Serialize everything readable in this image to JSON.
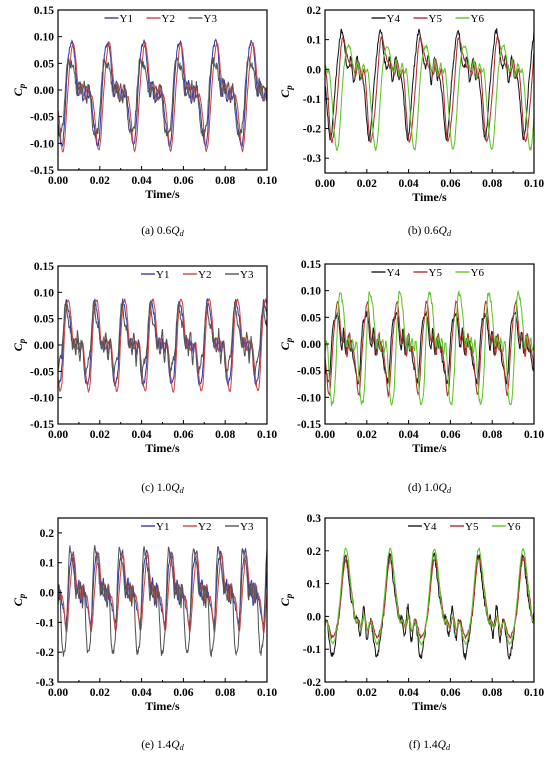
{
  "legend_colors": {
    "Y1": "#3a3aa8",
    "Y2": "#c84848",
    "Y3": "#555555",
    "Y4": "#1a1a1a",
    "Y5": "#b03030",
    "Y6": "#5fc52a"
  },
  "chart_data": [
    {
      "type": "line",
      "panel": "a",
      "caption_prefix": "(a) 0.6",
      "caption_q": "Q",
      "caption_sub": "d",
      "xlabel": "Time/s",
      "ylabel_main": "C",
      "ylabel_sub": "p",
      "xlim": [
        0,
        0.1
      ],
      "ylim": [
        -0.15,
        0.15
      ],
      "xticks": [
        "0.00",
        "0.02",
        "0.04",
        "0.06",
        "0.08",
        "0.10"
      ],
      "yticks": [
        "-0.15",
        "-0.10",
        "-0.05",
        "0.00",
        "0.05",
        "0.10",
        "0.15"
      ],
      "legend": "top-center",
      "series": [
        {
          "name": "Y1",
          "color": "#3a3aa8",
          "period": 0.0172,
          "phase": 0.0015,
          "mean": -0.005,
          "peak": 0.095,
          "trough": -0.105,
          "harm": 0.015,
          "noise": 0.005
        },
        {
          "name": "Y2",
          "color": "#c84848",
          "period": 0.0172,
          "phase": 0.0022,
          "mean": -0.005,
          "peak": 0.085,
          "trough": -0.11,
          "harm": 0.01,
          "noise": 0.003
        },
        {
          "name": "Y3",
          "color": "#555555",
          "period": 0.0172,
          "phase": 0.0008,
          "mean": 0.0,
          "peak": 0.06,
          "trough": -0.09,
          "harm": 0.02,
          "noise": 0.008
        }
      ]
    },
    {
      "type": "line",
      "panel": "b",
      "caption_prefix": "(b) 0.6",
      "caption_q": "Q",
      "caption_sub": "d",
      "xlabel": "Time/s",
      "ylabel_main": "C",
      "ylabel_sub": "p",
      "xlim": [
        0,
        0.1
      ],
      "ylim": [
        -0.35,
        0.2
      ],
      "xticks": [
        "0.00",
        "0.02",
        "0.04",
        "0.06",
        "0.08",
        "0.10"
      ],
      "yticks": [
        "-0.3",
        "-0.2",
        "-0.1",
        "0.0",
        "0.1",
        "0.2"
      ],
      "legend": "top-center",
      "series": [
        {
          "name": "Y4",
          "color": "#1a1a1a",
          "period": 0.0185,
          "phase": 0.0025,
          "mean": 0.0,
          "peak": 0.12,
          "trough": -0.22,
          "harm": 0.03,
          "noise": 0.01
        },
        {
          "name": "Y5",
          "color": "#b03030",
          "period": 0.0185,
          "phase": 0.0035,
          "mean": 0.0,
          "peak": 0.1,
          "trough": -0.24,
          "harm": 0.02,
          "noise": 0.005
        },
        {
          "name": "Y6",
          "color": "#5fc52a",
          "period": 0.0185,
          "phase": 0.0055,
          "mean": 0.0,
          "peak": 0.08,
          "trough": -0.27,
          "harm": 0.02,
          "noise": 0.005
        }
      ]
    },
    {
      "type": "line",
      "panel": "c",
      "caption_prefix": "(c) 1.0",
      "caption_q": "Q",
      "caption_sub": "d",
      "xlabel": "Time/s",
      "ylabel_main": "C",
      "ylabel_sub": "p",
      "xlim": [
        0,
        0.1
      ],
      "ylim": [
        -0.15,
        0.15
      ],
      "xticks": [
        "0.00",
        "0.02",
        "0.04",
        "0.06",
        "0.08",
        "0.10"
      ],
      "yticks": [
        "-0.15",
        "-0.10",
        "-0.05",
        "0.00",
        "0.05",
        "0.10",
        "0.15"
      ],
      "legend": "top-right",
      "series": [
        {
          "name": "Y1",
          "color": "#3a3aa8",
          "period": 0.0135,
          "phase": 0.0005,
          "mean": 0.0,
          "peak": 0.085,
          "trough": -0.08,
          "harm": 0.015,
          "noise": 0.005
        },
        {
          "name": "Y2",
          "color": "#c84848",
          "period": 0.0135,
          "phase": 0.001,
          "mean": 0.0,
          "peak": 0.09,
          "trough": -0.09,
          "harm": 0.01,
          "noise": 0.003
        },
        {
          "name": "Y3",
          "color": "#555555",
          "period": 0.0135,
          "phase": 0.0002,
          "mean": 0.0,
          "peak": 0.07,
          "trough": -0.05,
          "harm": 0.025,
          "noise": 0.008
        }
      ]
    },
    {
      "type": "line",
      "panel": "d",
      "caption_prefix": "(d) 1.0",
      "caption_q": "Q",
      "caption_sub": "d",
      "xlabel": "Time/s",
      "ylabel_main": "C",
      "ylabel_sub": "p",
      "xlim": [
        0,
        0.1
      ],
      "ylim": [
        -0.15,
        0.15
      ],
      "xticks": [
        "0.00",
        "0.02",
        "0.04",
        "0.06",
        "0.08",
        "0.10"
      ],
      "yticks": [
        "-0.15",
        "-0.10",
        "-0.05",
        "0.00",
        "0.05",
        "0.10",
        "0.15"
      ],
      "legend": "top-center",
      "series": [
        {
          "name": "Y4",
          "color": "#1a1a1a",
          "period": 0.0142,
          "phase": 0.0012,
          "mean": 0.0,
          "peak": 0.06,
          "trough": -0.07,
          "harm": 0.02,
          "noise": 0.005
        },
        {
          "name": "Y5",
          "color": "#b03030",
          "period": 0.0142,
          "phase": 0.0018,
          "mean": 0.0,
          "peak": 0.075,
          "trough": -0.09,
          "harm": 0.015,
          "noise": 0.003
        },
        {
          "name": "Y6",
          "color": "#5fc52a",
          "period": 0.0142,
          "phase": 0.0035,
          "mean": 0.0,
          "peak": 0.1,
          "trough": -0.12,
          "harm": 0.015,
          "noise": 0.005
        }
      ]
    },
    {
      "type": "line",
      "panel": "e",
      "caption_prefix": "(e) 1.4",
      "caption_q": "Q",
      "caption_sub": "d",
      "xlabel": "Time/s",
      "ylabel_main": "C",
      "ylabel_sub": "p",
      "xlim": [
        0,
        0.1
      ],
      "ylim": [
        -0.3,
        0.25
      ],
      "xticks": [
        "0.00",
        "0.02",
        "0.04",
        "0.06",
        "0.08",
        "0.10"
      ],
      "yticks": [
        "-0.3",
        "-0.2",
        "-0.1",
        "0.0",
        "0.1",
        "0.2"
      ],
      "legend": "top-right",
      "series": [
        {
          "name": "Y1",
          "color": "#3a3aa8",
          "period": 0.0118,
          "phase": 0.0035,
          "mean": 0.0,
          "peak": 0.14,
          "trough": -0.1,
          "harm": 0.03,
          "noise": 0.01
        },
        {
          "name": "Y2",
          "color": "#c84848",
          "period": 0.0118,
          "phase": 0.004,
          "mean": 0.0,
          "peak": 0.12,
          "trough": -0.12,
          "harm": 0.02,
          "noise": 0.005
        },
        {
          "name": "Y3",
          "color": "#555555",
          "period": 0.0118,
          "phase": 0.0028,
          "mean": 0.0,
          "peak": 0.15,
          "trough": -0.22,
          "harm": 0.04,
          "noise": 0.012
        }
      ]
    },
    {
      "type": "line",
      "panel": "f",
      "caption_prefix": "(f) 1.4",
      "caption_q": "Q",
      "caption_sub": "d",
      "xlabel": "Time/s",
      "ylabel_main": "C",
      "ylabel_sub": "p",
      "xlim": [
        0,
        0.1
      ],
      "ylim": [
        -0.2,
        0.3
      ],
      "xticks": [
        "0.00",
        "0.02",
        "0.04",
        "0.06",
        "0.08",
        "0.10"
      ],
      "yticks": [
        "-0.2",
        "-0.1",
        "0.0",
        "0.1",
        "0.2",
        "0.3"
      ],
      "legend": "top-right",
      "series": [
        {
          "name": "Y4",
          "color": "#1a1a1a",
          "period": 0.0212,
          "phase": 0.004,
          "mean": -0.02,
          "peak": 0.17,
          "trough": -0.11,
          "harm": 0.035,
          "noise": 0.012
        },
        {
          "name": "Y5",
          "color": "#b03030",
          "period": 0.0212,
          "phase": 0.0045,
          "mean": -0.02,
          "peak": 0.17,
          "trough": -0.06,
          "harm": 0.02,
          "noise": 0.005
        },
        {
          "name": "Y6",
          "color": "#5fc52a",
          "period": 0.0212,
          "phase": 0.0042,
          "mean": -0.02,
          "peak": 0.2,
          "trough": -0.08,
          "harm": 0.015,
          "noise": 0.004
        }
      ]
    }
  ]
}
